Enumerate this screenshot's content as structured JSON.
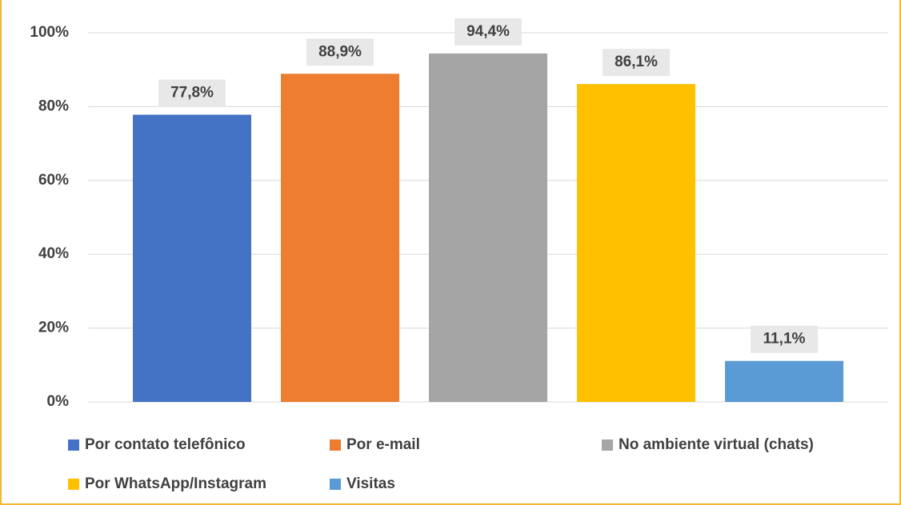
{
  "chart_data": {
    "type": "bar",
    "series": [
      {
        "name": "Por contato telefônico",
        "color": "#4472c4",
        "values": [
          77.8
        ],
        "value_labels": [
          "77,8%"
        ]
      },
      {
        "name": "Por e-mail",
        "color": "#ed7d31",
        "values": [
          88.9
        ],
        "value_labels": [
          "88,9%"
        ]
      },
      {
        "name": "No ambiente virtual (chats)",
        "color": "#a5a5a5",
        "values": [
          94.4
        ],
        "value_labels": [
          "94,4%"
        ]
      },
      {
        "name": "Por WhatsApp/Instagram",
        "color": "#ffc000",
        "values": [
          86.1
        ],
        "value_labels": [
          "86,1%"
        ]
      },
      {
        "name": "Visitas",
        "color": "#5b9bd5",
        "values": [
          11.1
        ],
        "value_labels": [
          "11,1%"
        ]
      }
    ],
    "ylim": [
      0,
      100
    ],
    "yticks": [
      {
        "value": 0,
        "label": "0%"
      },
      {
        "value": 20,
        "label": "20%"
      },
      {
        "value": 40,
        "label": "40%"
      },
      {
        "value": 60,
        "label": "60%"
      },
      {
        "value": 80,
        "label": "80%"
      },
      {
        "value": 100,
        "label": "100%"
      }
    ],
    "grid": true,
    "legend": "bottom"
  }
}
